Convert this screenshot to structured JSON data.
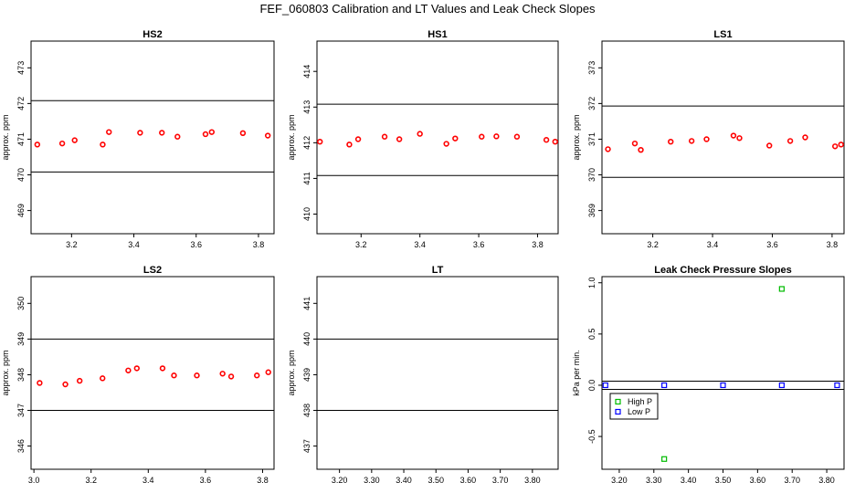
{
  "title": "FEF_060803  Calibration and LT Values and Leak Check Slopes",
  "chart_data": [
    {
      "type": "scatter",
      "title": "HS2",
      "ylabel": "approx. ppm",
      "xlim": [
        3.07,
        3.85
      ],
      "ylim": [
        468.35,
        473.75
      ],
      "xticks": [
        3.2,
        3.4,
        3.6,
        3.8
      ],
      "yticks": [
        469,
        470,
        471,
        472,
        473
      ],
      "hlines": [
        470.08,
        472.08
      ],
      "color": "#ff0000",
      "x": [
        3.09,
        3.17,
        3.21,
        3.3,
        3.32,
        3.42,
        3.49,
        3.54,
        3.63,
        3.65,
        3.75,
        3.83
      ],
      "y": [
        470.85,
        470.88,
        470.97,
        470.85,
        471.2,
        471.18,
        471.18,
        471.07,
        471.14,
        471.2,
        471.17,
        471.1
      ]
    },
    {
      "type": "scatter",
      "title": "HS1",
      "ylabel": "approx. ppm",
      "xlim": [
        3.05,
        3.87
      ],
      "ylim": [
        409.45,
        414.85
      ],
      "xticks": [
        3.2,
        3.4,
        3.6,
        3.8
      ],
      "yticks": [
        410,
        411,
        412,
        413,
        414
      ],
      "hlines": [
        411.08,
        413.08
      ],
      "color": "#ff0000",
      "x": [
        3.06,
        3.16,
        3.19,
        3.28,
        3.33,
        3.4,
        3.49,
        3.52,
        3.61,
        3.66,
        3.73,
        3.83,
        3.86
      ],
      "y": [
        412.03,
        411.95,
        412.1,
        412.17,
        412.1,
        412.25,
        411.97,
        412.12,
        412.17,
        412.18,
        412.17,
        412.08,
        412.03
      ]
    },
    {
      "type": "scatter",
      "title": "LS1",
      "ylabel": "approx. ppm",
      "xlim": [
        3.03,
        3.84
      ],
      "ylim": [
        368.35,
        373.75
      ],
      "xticks": [
        3.2,
        3.4,
        3.6,
        3.8
      ],
      "yticks": [
        369,
        370,
        371,
        372,
        373
      ],
      "hlines": [
        369.93,
        371.93
      ],
      "color": "#ff0000",
      "x": [
        3.05,
        3.14,
        3.16,
        3.26,
        3.33,
        3.38,
        3.47,
        3.49,
        3.59,
        3.66,
        3.71,
        3.81,
        3.83
      ],
      "y": [
        370.72,
        370.88,
        370.7,
        370.93,
        370.95,
        371.0,
        371.1,
        371.03,
        370.82,
        370.95,
        371.05,
        370.8,
        370.85
      ]
    },
    {
      "type": "scatter",
      "title": "LS2",
      "ylabel": "approx. ppm",
      "xlim": [
        2.99,
        3.84
      ],
      "ylim": [
        345.35,
        350.75
      ],
      "xticks": [
        3.0,
        3.2,
        3.4,
        3.6,
        3.8
      ],
      "yticks": [
        346,
        347,
        348,
        349,
        350
      ],
      "hlines": [
        347.0,
        349.0
      ],
      "color": "#ff0000",
      "x": [
        3.02,
        3.11,
        3.16,
        3.24,
        3.33,
        3.36,
        3.45,
        3.49,
        3.57,
        3.66,
        3.69,
        3.78,
        3.82
      ],
      "y": [
        347.77,
        347.73,
        347.83,
        347.9,
        348.12,
        348.18,
        348.18,
        347.98,
        347.98,
        348.03,
        347.95,
        347.98,
        348.07
      ]
    },
    {
      "type": "scatter",
      "title": "LT",
      "ylabel": "approx. ppm",
      "xlim": [
        3.13,
        3.88
      ],
      "ylim": [
        436.35,
        441.75
      ],
      "xticks": [
        3.2,
        3.3,
        3.4,
        3.5,
        3.6,
        3.7,
        3.8
      ],
      "yticks": [
        437,
        438,
        439,
        440,
        441
      ],
      "hlines": [
        438.0,
        440.0
      ],
      "color": "#ff0000",
      "x": [],
      "y": []
    },
    {
      "type": "scatter",
      "title": "Leak Check Pressure Slopes",
      "ylabel": "kPa per min.",
      "xlim": [
        3.15,
        3.85
      ],
      "ylim": [
        -0.82,
        1.06
      ],
      "xticks": [
        3.2,
        3.3,
        3.4,
        3.5,
        3.6,
        3.7,
        3.8
      ],
      "yticks": [
        -0.5,
        0.0,
        0.5,
        1.0
      ],
      "hlines": [
        -0.04,
        0.04
      ],
      "series": [
        {
          "name": "High P",
          "color": "#00bb00",
          "marker": "square",
          "x": [
            3.33,
            3.67
          ],
          "y": [
            -0.72,
            0.94
          ]
        },
        {
          "name": "Low P",
          "color": "#0000ff",
          "marker": "square",
          "x": [
            3.16,
            3.33,
            3.5,
            3.67,
            3.83
          ],
          "y": [
            0.0,
            0.0,
            0.0,
            0.0,
            0.0
          ]
        }
      ],
      "legend": "top-left"
    }
  ]
}
